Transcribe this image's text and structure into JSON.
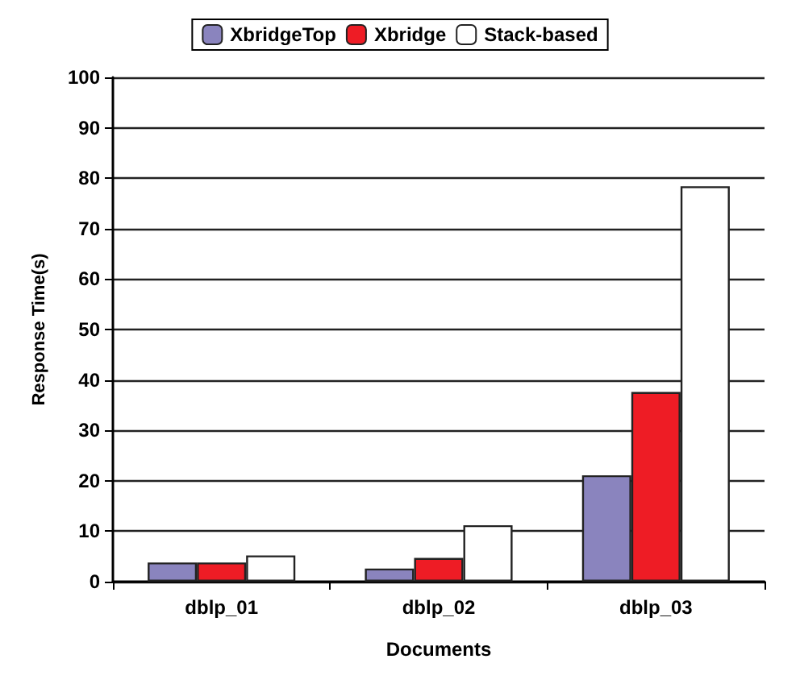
{
  "chart_data": {
    "type": "bar",
    "xlabel": "Documents",
    "ylabel": "Response Time(s)",
    "categories": [
      "dblp_01",
      "dblp_02",
      "dblp_03"
    ],
    "series": [
      {
        "name": "XbridgeTop",
        "color": "#8a84be",
        "values": [
          3.8,
          2.6,
          21.1
        ]
      },
      {
        "name": "Xbridge",
        "color": "#ee1c25",
        "values": [
          3.8,
          4.7,
          37.6
        ]
      },
      {
        "name": "Stack-based",
        "color": "#ffffff",
        "values": [
          5.2,
          11.2,
          78.4
        ]
      }
    ],
    "ylim": [
      0,
      100
    ],
    "yticks": [
      0,
      10,
      20,
      30,
      40,
      50,
      60,
      70,
      80,
      90,
      100
    ],
    "grid": "y",
    "legend": "top"
  }
}
